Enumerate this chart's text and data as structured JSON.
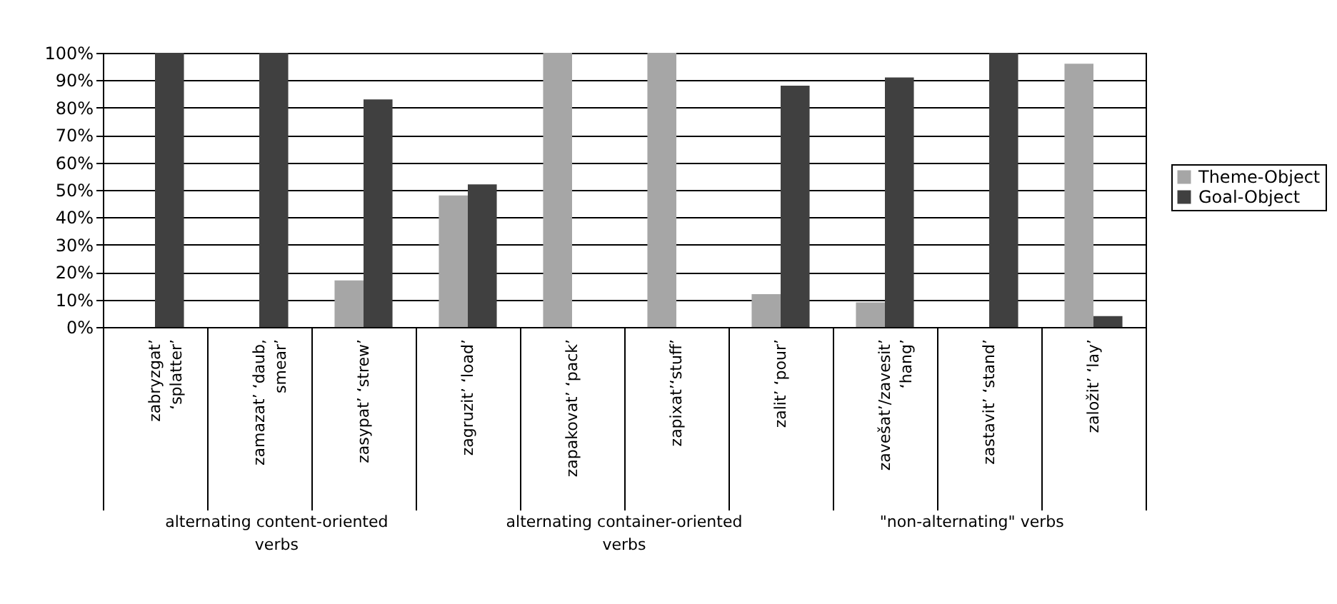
{
  "chart_data": {
    "type": "bar",
    "categories": [
      "zabryzgat’ ‘splatter’",
      "zamazat’ ‘daub, smear’",
      "zasypat’ ‘strew’",
      "zagruzit’ ‘load’",
      "zapakovat’ ‘pack’",
      "zapixat’‘stuff’",
      "zalit’ ‘pour’",
      "zavešat’/zavesit’ ‘hang’",
      "zastavit’ ‘stand’",
      "založit’ ‘lay’"
    ],
    "series": [
      {
        "name": "Theme-Object",
        "color": "#a6a6a6",
        "values": [
          0,
          0,
          17,
          48,
          100,
          100,
          12,
          9,
          0,
          96
        ]
      },
      {
        "name": "Goal-Object",
        "color": "#404040",
        "values": [
          100,
          100,
          83,
          52,
          0,
          0,
          88,
          91,
          100,
          4
        ]
      }
    ],
    "ylim": [
      0,
      100
    ],
    "yticks": [
      {
        "value": 0,
        "label": "0%"
      },
      {
        "value": 10,
        "label": "10%"
      },
      {
        "value": 20,
        "label": "20%"
      },
      {
        "value": 30,
        "label": "30%"
      },
      {
        "value": 40,
        "label": "40%"
      },
      {
        "value": 50,
        "label": "50%"
      },
      {
        "value": 60,
        "label": "60%"
      },
      {
        "value": 70,
        "label": "70%"
      },
      {
        "value": 80,
        "label": "80%"
      },
      {
        "value": 90,
        "label": "90%"
      },
      {
        "value": 100,
        "label": "100%"
      }
    ],
    "grid": "y",
    "legend": "right",
    "annotations": [
      "alternating content-oriented verbs",
      "alternating container-oriented verbs",
      "\"non-alternating\" verbs"
    ]
  }
}
